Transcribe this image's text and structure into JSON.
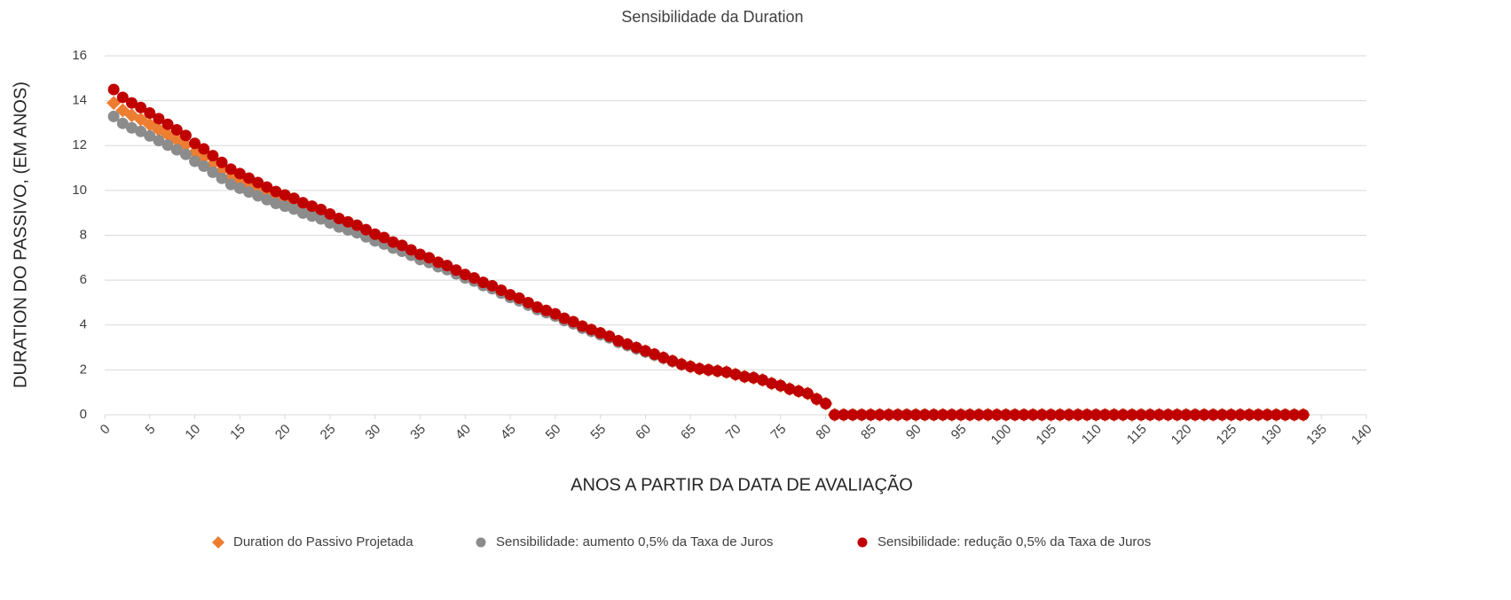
{
  "chart_data": {
    "type": "scatter",
    "title": "Sensibilidade da Duration",
    "xlabel": "ANOS A PARTIR DA DATA DE AVALIAÇÃO",
    "ylabel": "DURATION DO PASSIVO,  (EM ANOS)",
    "xlim": [
      0,
      140
    ],
    "ylim": [
      0,
      16
    ],
    "xticks": [
      0,
      5,
      10,
      15,
      20,
      25,
      30,
      35,
      40,
      45,
      50,
      55,
      60,
      65,
      70,
      75,
      80,
      85,
      90,
      95,
      100,
      105,
      110,
      115,
      120,
      125,
      130,
      135,
      140
    ],
    "yticks": [
      0,
      2,
      4,
      6,
      8,
      10,
      12,
      14,
      16
    ],
    "grid": true,
    "legend": "bottom",
    "x": [
      1,
      2,
      3,
      4,
      5,
      6,
      7,
      8,
      9,
      10,
      11,
      12,
      13,
      14,
      15,
      16,
      17,
      18,
      19,
      20,
      21,
      22,
      23,
      24,
      25,
      26,
      27,
      28,
      29,
      30,
      31,
      32,
      33,
      34,
      35,
      36,
      37,
      38,
      39,
      40,
      41,
      42,
      43,
      44,
      45,
      46,
      47,
      48,
      49,
      50,
      51,
      52,
      53,
      54,
      55,
      56,
      57,
      58,
      59,
      60,
      61,
      62,
      63,
      64,
      65,
      66,
      67,
      68,
      69,
      70,
      71,
      72,
      73,
      74,
      75,
      76,
      77,
      78,
      79,
      80,
      81,
      82,
      83,
      84,
      85,
      86,
      87,
      88,
      89,
      90,
      91,
      92,
      93,
      94,
      95,
      96,
      97,
      98,
      99,
      100,
      101,
      102,
      103,
      104,
      105,
      106,
      107,
      108,
      109,
      110,
      111,
      112,
      113,
      114,
      115,
      116,
      117,
      118,
      119,
      120,
      121,
      122,
      123,
      124,
      125,
      126,
      127,
      128,
      129,
      130,
      131,
      132,
      133
    ],
    "series": [
      {
        "name": "Duration do Passivo Projetada",
        "color": "#ed7d31",
        "marker": "diamond",
        "values": [
          13.9,
          13.57,
          13.35,
          13.17,
          12.94,
          12.71,
          12.49,
          12.26,
          12.03,
          11.7,
          11.47,
          11.18,
          10.9,
          10.61,
          10.43,
          10.24,
          10.06,
          9.87,
          9.69,
          9.55,
          9.41,
          9.22,
          9.08,
          8.94,
          8.75,
          8.56,
          8.42,
          8.28,
          8.09,
          7.9,
          7.76,
          7.57,
          7.42,
          7.23,
          7.04,
          6.9,
          6.7,
          6.56,
          6.37,
          6.18,
          6.03,
          5.83,
          5.68,
          5.49,
          5.29,
          5.14,
          4.94,
          4.75,
          4.6,
          4.45,
          4.25,
          4.11,
          3.91,
          3.76,
          3.61,
          3.47,
          3.27,
          3.12,
          2.97,
          2.83,
          2.68,
          2.54,
          2.39,
          2.25,
          2.15,
          2.05,
          2,
          1.95,
          1.9,
          1.8,
          1.7,
          1.65,
          1.55,
          1.4,
          1.3,
          1.15,
          1.05,
          0.95,
          0.7,
          0.5,
          0,
          0,
          0,
          0,
          0,
          0,
          0,
          0,
          0,
          0,
          0,
          0,
          0,
          0,
          0,
          0,
          0,
          0,
          0,
          0,
          0,
          0,
          0,
          0,
          0,
          0,
          0,
          0,
          0,
          0,
          0,
          0,
          0,
          0,
          0,
          0,
          0,
          0,
          0,
          0,
          0,
          0,
          0,
          0,
          0,
          0,
          0,
          0,
          0,
          0,
          0,
          0,
          0
        ]
      },
      {
        "name": "Sensibilidade: aumento 0,5% da Taxa de Juros",
        "color": "#8c8c8c",
        "marker": "circle",
        "values": [
          13.3,
          12.99,
          12.79,
          12.63,
          12.43,
          12.22,
          12.02,
          11.81,
          11.61,
          11.3,
          11.08,
          10.81,
          10.54,
          10.27,
          10.1,
          9.93,
          9.76,
          9.59,
          9.42,
          9.3,
          9.17,
          8.99,
          8.86,
          8.73,
          8.55,
          8.37,
          8.24,
          8.11,
          7.93,
          7.75,
          7.61,
          7.43,
          7.29,
          7.11,
          6.92,
          6.79,
          6.6,
          6.47,
          6.28,
          6.1,
          5.96,
          5.76,
          5.62,
          5.42,
          5.23,
          5.08,
          4.89,
          4.69,
          4.55,
          4.4,
          4.2,
          4.06,
          3.86,
          3.72,
          3.57,
          3.43,
          3.23,
          3.09,
          2.94,
          2.8,
          2.66,
          2.52,
          2.38,
          2.24,
          2.15,
          2.05,
          2,
          1.95,
          1.9,
          1.8,
          1.7,
          1.65,
          1.55,
          1.4,
          1.3,
          1.15,
          1.05,
          0.95,
          0.7,
          0.5,
          0,
          0,
          0,
          0,
          0,
          0,
          0,
          0,
          0,
          0,
          0,
          0,
          0,
          0,
          0,
          0,
          0,
          0,
          0,
          0,
          0,
          0,
          0,
          0,
          0,
          0,
          0,
          0,
          0,
          0,
          0,
          0,
          0,
          0,
          0,
          0,
          0,
          0,
          0,
          0,
          0,
          0,
          0,
          0,
          0,
          0,
          0,
          0,
          0,
          0,
          0,
          0,
          0
        ]
      },
      {
        "name": "Sensibilidade: redução 0,5% da Taxa de Juros",
        "color": "#c00000",
        "marker": "circle",
        "values": [
          14.5,
          14.15,
          13.9,
          13.7,
          13.45,
          13.2,
          12.95,
          12.7,
          12.45,
          12.1,
          11.85,
          11.55,
          11.25,
          10.95,
          10.75,
          10.55,
          10.35,
          10.15,
          9.95,
          9.8,
          9.65,
          9.45,
          9.3,
          9.15,
          8.95,
          8.75,
          8.6,
          8.45,
          8.25,
          8.05,
          7.9,
          7.7,
          7.55,
          7.35,
          7.15,
          7,
          6.8,
          6.65,
          6.45,
          6.25,
          6.1,
          5.9,
          5.75,
          5.55,
          5.35,
          5.2,
          5,
          4.8,
          4.65,
          4.5,
          4.3,
          4.15,
          3.95,
          3.8,
          3.65,
          3.5,
          3.3,
          3.15,
          3,
          2.85,
          2.7,
          2.55,
          2.4,
          2.25,
          2.15,
          2.05,
          2,
          1.95,
          1.9,
          1.8,
          1.7,
          1.65,
          1.55,
          1.4,
          1.3,
          1.15,
          1.05,
          0.95,
          0.7,
          0.5,
          0,
          0,
          0,
          0,
          0,
          0,
          0,
          0,
          0,
          0,
          0,
          0,
          0,
          0,
          0,
          0,
          0,
          0,
          0,
          0,
          0,
          0,
          0,
          0,
          0,
          0,
          0,
          0,
          0,
          0,
          0,
          0,
          0,
          0,
          0,
          0,
          0,
          0,
          0,
          0,
          0,
          0,
          0,
          0,
          0,
          0,
          0,
          0,
          0,
          0,
          0,
          0,
          0
        ]
      }
    ]
  }
}
